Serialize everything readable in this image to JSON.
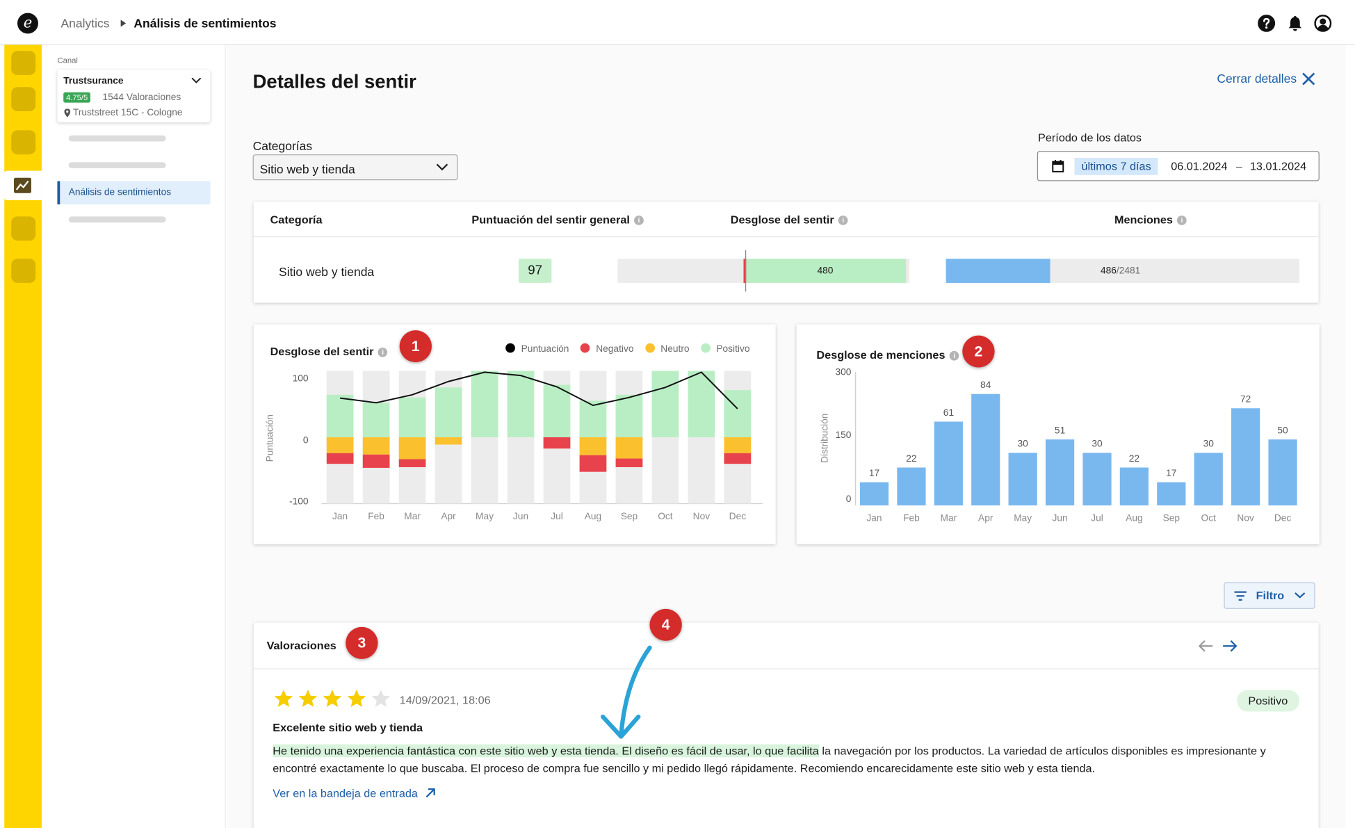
{
  "header": {
    "breadcrumb_root": "Analytics",
    "breadcrumb_current": "Análisis de sentimientos",
    "icons": [
      "help-icon",
      "bell-icon",
      "account-icon"
    ]
  },
  "sidebar": {
    "canal_label": "Canal",
    "channel": {
      "name": "Trustsurance",
      "rating": "4.75/5",
      "rating_count": "1544 Valoraciones",
      "address": "Truststreet 15C - Cologne"
    },
    "active_item": "Análisis de sentimientos"
  },
  "page": {
    "title": "Detalles del sentir",
    "close_label": "Cerrar detalles"
  },
  "filters": {
    "category_label": "Categorías",
    "category_value": "Sitio web y tienda",
    "period_label": "Período de los datos",
    "period_chip": "últimos 7 días",
    "date_from": "06.01.2024",
    "date_sep": "–",
    "date_to": "13.01.2024"
  },
  "summary": {
    "headers": {
      "category": "Categoría",
      "score": "Puntuación del sentir general",
      "breakdown": "Desglose del sentir",
      "mentions": "Menciones"
    },
    "row": {
      "category": "Sitio web y tienda",
      "score": "97",
      "positive": "480",
      "mentions": "486",
      "mentions_total": "/2481"
    }
  },
  "sentiment_chart": {
    "title": "Desglose del sentir",
    "marker": "1",
    "legend": [
      {
        "label": "Puntuación",
        "color": "#000000"
      },
      {
        "label": "Negativo",
        "color": "#e8424c"
      },
      {
        "label": "Neutro",
        "color": "#fbc02d"
      },
      {
        "label": "Positivo",
        "color": "#b9eec4"
      }
    ]
  },
  "mentions_chart": {
    "title": "Desglose de menciones",
    "marker": "2"
  },
  "chart_data": [
    {
      "type": "bar",
      "title": "Desglose del sentir",
      "ylabel": "Puntuación",
      "ylim": [
        -100,
        100
      ],
      "yticks": [
        "100",
        "0",
        "-100"
      ],
      "categories": [
        "Jan",
        "Feb",
        "Mar",
        "Apr",
        "May",
        "Jun",
        "Jul",
        "Aug",
        "Sep",
        "Oct",
        "Nov",
        "Dec"
      ],
      "series": [
        {
          "name": "Positivo",
          "values": [
            64,
            52,
            60,
            75,
            100,
            100,
            79,
            55,
            64,
            100,
            100,
            71
          ]
        },
        {
          "name": "Neutro",
          "values": [
            -24,
            -26,
            -33,
            -11,
            0,
            0,
            0,
            -27,
            -32,
            0,
            0,
            -24
          ]
        },
        {
          "name": "Negativo",
          "values": [
            -16,
            -20,
            -12,
            0,
            0,
            0,
            -17,
            -25,
            -13,
            0,
            0,
            -16
          ]
        },
        {
          "name": "Puntuación",
          "values": [
            59,
            52,
            64,
            84,
            98,
            93,
            76,
            48,
            60,
            75,
            98,
            43
          ]
        }
      ]
    },
    {
      "type": "bar",
      "title": "Desglose de menciones",
      "ylabel": "Distribución",
      "ylim": [
        0,
        300
      ],
      "yticks": [
        "300",
        "150",
        "0"
      ],
      "categories": [
        "Jan",
        "Feb",
        "Mar",
        "Apr",
        "May",
        "Jun",
        "Jul",
        "Aug",
        "Sep",
        "Oct",
        "Nov",
        "Dec"
      ],
      "values": [
        17,
        22,
        61,
        84,
        30,
        51,
        30,
        22,
        17,
        30,
        72,
        50
      ],
      "bar_heights_shown": [
        52,
        85,
        188,
        250,
        118,
        148,
        118,
        85,
        52,
        118,
        218,
        148
      ]
    }
  ],
  "reviews": {
    "title": "Valoraciones",
    "marker": "3",
    "filter_label": "Filtro",
    "arrow_marker": "4",
    "item": {
      "stars": 4,
      "max_stars": 5,
      "date": "14/09/2021, 18:06",
      "status": "Positivo",
      "heading": "Excelente sitio web y tienda",
      "highlight": "He tenido una experiencia fantástica con este sitio web y esta tienda. El diseño es fácil de usar, lo que facilita",
      "body_rest": " la navegación por los productos. La variedad de artículos disponibles es impresionante y encontré exactamente lo que buscaba. El proceso de compra fue sencillo y mi pedido llegó rápidamente. Recomiendo encarecidamente este sitio web y esta tienda.",
      "link": "Ver en la bandeja de entrada"
    }
  },
  "colors": {
    "rail": "#ffd500",
    "positive": "#b9eec4",
    "neutral": "#fbc02d",
    "negative": "#e8424c",
    "mentions": "#79b8ef",
    "link": "#1f5fa8",
    "marker": "#d42b2b"
  }
}
